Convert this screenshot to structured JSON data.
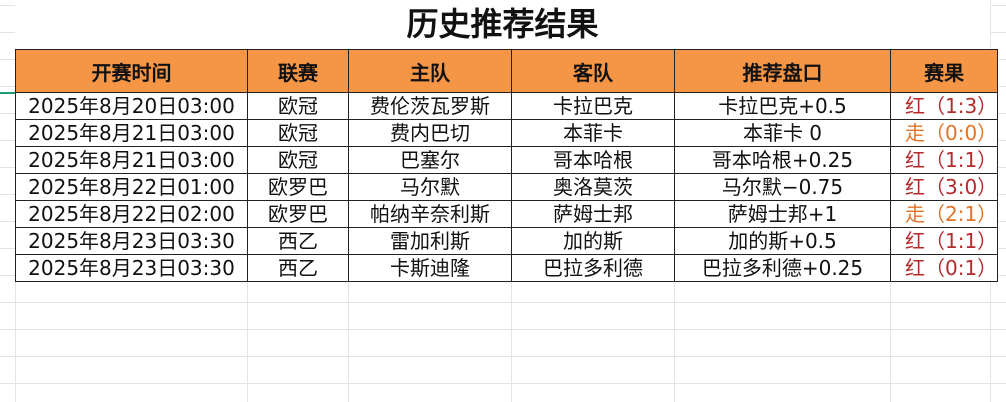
{
  "title": "历史推荐结果",
  "columns": [
    "开赛时间",
    "联赛",
    "主队",
    "客队",
    "推荐盘口",
    "赛果"
  ],
  "colors": {
    "header_bg": "#f59646",
    "win": "#b52a2a",
    "push": "#e0742a"
  },
  "rows": [
    {
      "time": "2025年8月20日03:00",
      "league": "欧冠",
      "home": "费伦茨瓦罗斯",
      "away": "卡拉巴克",
      "pick": "卡拉巴克+0.5",
      "result": "红（1:3）",
      "type": "red"
    },
    {
      "time": "2025年8月21日03:00",
      "league": "欧冠",
      "home": "费内巴切",
      "away": "本菲卡",
      "pick": "本菲卡 0",
      "result": "走（0:0）",
      "type": "orange"
    },
    {
      "time": "2025年8月21日03:00",
      "league": "欧冠",
      "home": "巴塞尔",
      "away": "哥本哈根",
      "pick": "哥本哈根+0.25",
      "result": "红（1:1）",
      "type": "red"
    },
    {
      "time": "2025年8月22日01:00",
      "league": "欧罗巴",
      "home": "马尔默",
      "away": "奥洛莫茨",
      "pick": "马尔默−0.75",
      "result": "红（3:0）",
      "type": "red"
    },
    {
      "time": "2025年8月22日02:00",
      "league": "欧罗巴",
      "home": "帕纳辛奈利斯",
      "away": "萨姆士邦",
      "pick": "萨姆士邦+1",
      "result": "走（2:1）",
      "type": "orange"
    },
    {
      "time": "2025年8月23日03:30",
      "league": "西乙",
      "home": "雷加利斯",
      "away": "加的斯",
      "pick": "加的斯+0.5",
      "result": "红（1:1）",
      "type": "red"
    },
    {
      "time": "2025年8月23日03:30",
      "league": "西乙",
      "home": "卡斯迪隆",
      "away": "巴拉多利德",
      "pick": "巴拉多利德+0.25",
      "result": "红（0:1）",
      "type": "red"
    }
  ]
}
